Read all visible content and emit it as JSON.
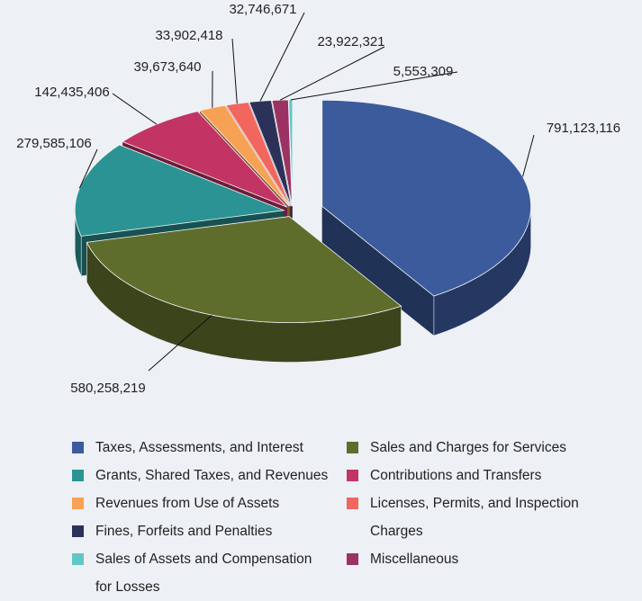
{
  "chart_data": {
    "type": "pie",
    "categories": [
      "Taxes, Assessments, and Interest",
      "Sales and Charges for Services",
      "Grants, Shared Taxes, and Revenues",
      "Contributions and Transfers",
      "Revenues from Use of Assets",
      "Licenses, Permits, and Inspection Charges",
      "Fines, Forfeits and Penalties",
      "Miscellaneous",
      "Sales of Assets and Compensation for Losses"
    ],
    "values": [
      791123116,
      580258219,
      279585106,
      142435406,
      39673640,
      33902418,
      32746671,
      23922321,
      5553309
    ],
    "value_labels": [
      "791,123,116",
      "580,258,219",
      "279,585,106",
      "142,435,406",
      "39,673,640",
      "33,902,418",
      "32,746,671",
      "23,922,321",
      "5,553,309"
    ],
    "colors": [
      "#3b5b9c",
      "#5f6d2c",
      "#2b9393",
      "#c23464",
      "#f7a154",
      "#f1675f",
      "#2b3158",
      "#9b3263",
      "#62c6c6"
    ]
  }
}
